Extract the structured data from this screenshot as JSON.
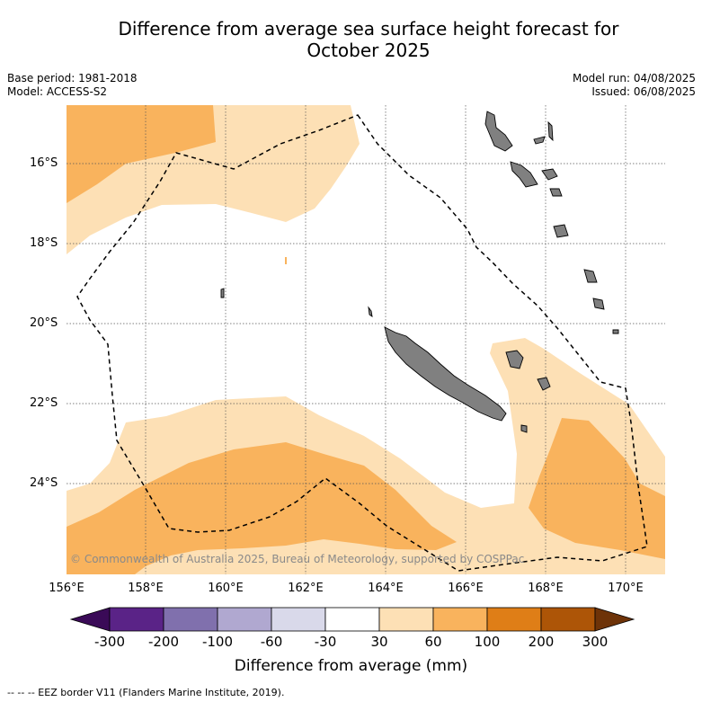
{
  "title_line1": "Difference from average sea surface height forecast for",
  "title_line2": "October 2025",
  "meta_left": {
    "base_period": "Base period: 1981-2018",
    "model": "Model: ACCESS-S2"
  },
  "meta_right": {
    "model_run": "Model run: 04/08/2025",
    "issued": "Issued: 06/08/2025"
  },
  "map": {
    "lat_labels": [
      "16°S",
      "18°S",
      "20°S",
      "22°S",
      "24°S"
    ],
    "lon_labels": [
      "156°E",
      "158°E",
      "160°E",
      "162°E",
      "164°E",
      "166°E",
      "168°E",
      "170°E"
    ],
    "copyright": "© Commonwealth of Australia 2025, Bureau of Meteorology, supported by COSPPac",
    "colors": {
      "land": "#808080",
      "band_30_60": "#fde0b5",
      "band_60_100": "#f9b35d",
      "ocean_neutral": "#ffffff"
    }
  },
  "colorbar": {
    "title": "Difference from average (mm)",
    "tick_labels": [
      "-300",
      "-200",
      "-100",
      "-60",
      "-30",
      "30",
      "60",
      "100",
      "200",
      "300"
    ],
    "colors": [
      "#3a0a57",
      "#5a2387",
      "#8070ad",
      "#b0a8d0",
      "#d9d9ea",
      "#ffffff",
      "#fde0b5",
      "#f9b35d",
      "#df7e17",
      "#ad5507",
      "#6e3308"
    ]
  },
  "footnote": "-- -- -- EEZ border V11 (Flanders Marine Institute, 2019)."
}
